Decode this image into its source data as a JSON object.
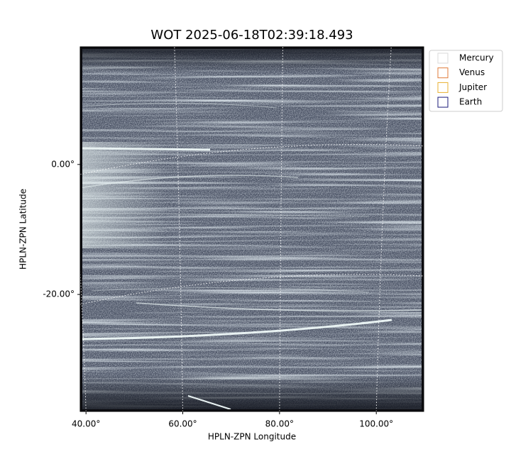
{
  "chart_data": {
    "type": "image",
    "title": "WOT 2025-06-18T02:39:18.493",
    "x_label": "HPLN-ZPN Longitude",
    "y_label": "HPLN-ZPN Latitude",
    "xlim": [
      38.8,
      109.8
    ],
    "ylim": [
      -38.0,
      18.1
    ],
    "xticks": [
      {
        "value": 40,
        "label": "40.00°"
      },
      {
        "value": 60,
        "label": "60.00°"
      },
      {
        "value": 80,
        "label": "80.00°"
      },
      {
        "value": 100,
        "label": "100.00°"
      }
    ],
    "yticks": [
      {
        "value": -20,
        "label": "-20.00°"
      },
      {
        "value": 0,
        "label": "0.00°"
      }
    ],
    "grid": true,
    "legend": "upper right outside",
    "series": [
      {
        "name": "Mercury",
        "color": "#d8d8d8"
      },
      {
        "name": "Venus",
        "color": "#e07b39"
      },
      {
        "name": "Jupiter",
        "color": "#e8b030"
      },
      {
        "name": "Earth",
        "color": "#1a1a7a"
      }
    ]
  }
}
